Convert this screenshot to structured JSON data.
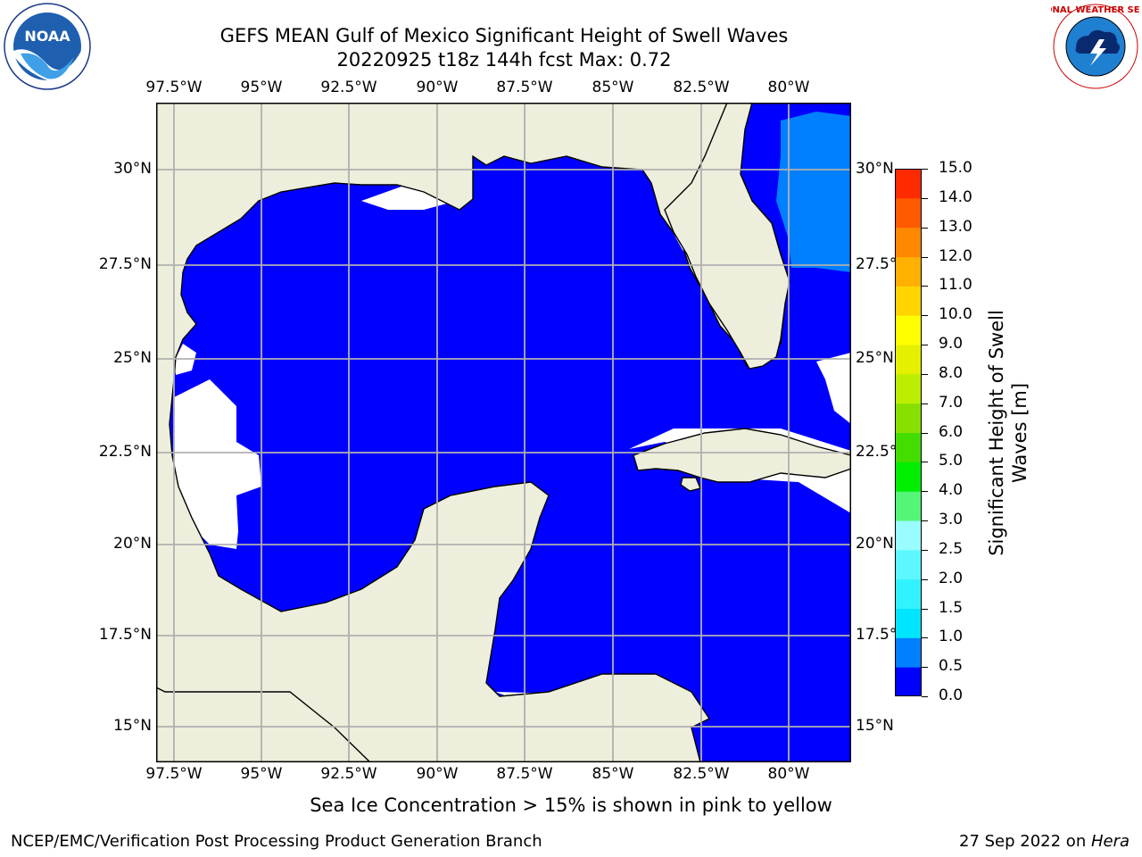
{
  "title_line1": "GEFS MEAN Gulf of Mexico Significant Height of Swell Waves",
  "title_line2": "20220925 t18z 144h fcst   Max: 0.72",
  "lon_ticks": [
    "97.5°W",
    "95°W",
    "92.5°W",
    "90°W",
    "87.5°W",
    "85°W",
    "82.5°W",
    "80°W"
  ],
  "lat_ticks": [
    "30°N",
    "27.5°N",
    "25°N",
    "22.5°N",
    "20°N",
    "17.5°N",
    "15°N"
  ],
  "colorbar": {
    "label": "Significant Height of Swell Waves [m]",
    "label_line1": "Significant Height of Swell",
    "label_line2": "Waves [m]",
    "ticks": [
      "0.0",
      "0.5",
      "1.0",
      "1.5",
      "2.0",
      "2.5",
      "3.0",
      "4.0",
      "5.0",
      "6.0",
      "7.0",
      "8.0",
      "9.0",
      "10.0",
      "11.0",
      "12.0",
      "13.0",
      "14.0",
      "15.0"
    ],
    "colors": [
      "#0000ff",
      "#0080ff",
      "#00e5ff",
      "#33f2ff",
      "#5cf7ff",
      "#99fcff",
      "#55f577",
      "#00ee00",
      "#44dd00",
      "#88e000",
      "#bbee00",
      "#e5f000",
      "#ffff00",
      "#ffd400",
      "#ffb000",
      "#ff8800",
      "#ff5a00",
      "#ff2a00",
      "#ff0000"
    ]
  },
  "colors": {
    "water_low": "#0000ff",
    "water_mid": "#0080ff",
    "land": "#eeeedd",
    "grid": "#b0b0b0"
  },
  "note": "Sea Ice Concentration > 15% is shown in pink to yellow",
  "footer_left": "NCEP/EMC/Verification Post Processing Product Generation Branch",
  "footer_date": "27 Sep 2022 on ",
  "footer_host": "Hera",
  "logos": {
    "left_text": "NOAA",
    "right_text": "NATIONAL WEATHER SERVICE"
  }
}
